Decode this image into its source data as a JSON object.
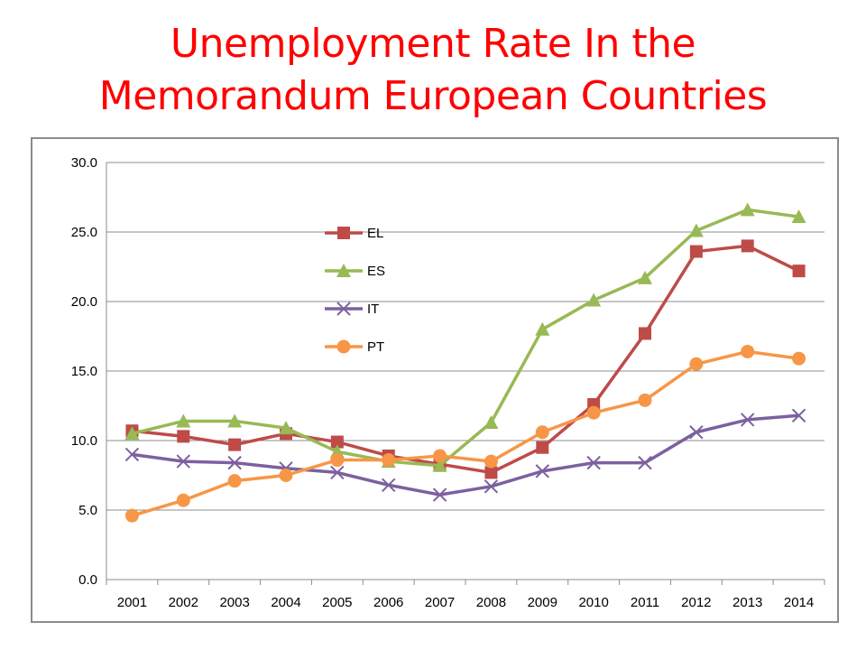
{
  "title": {
    "line1": "Unemployment Rate In the",
    "line2": "Memorandum European Countries"
  },
  "colors": {
    "title": "#ff0000",
    "EL": "#be4b48",
    "ES": "#98b954",
    "IT": "#7d60a0",
    "PT": "#f79646",
    "grid": "#8c8c8c"
  },
  "chart_data": {
    "type": "line",
    "title": "",
    "xlabel": "",
    "ylabel": "",
    "categories": [
      "2001",
      "2002",
      "2003",
      "2004",
      "2005",
      "2006",
      "2007",
      "2008",
      "2009",
      "2010",
      "2011",
      "2012",
      "2013",
      "2014"
    ],
    "ylim": [
      0,
      30
    ],
    "yticks": [
      "0.0",
      "5.0",
      "10.0",
      "15.0",
      "20.0",
      "25.0",
      "30.0"
    ],
    "grid": true,
    "legend_position": "upper-left-center",
    "series": [
      {
        "name": "EL",
        "marker": "square",
        "color": "#be4b48",
        "values": [
          10.7,
          10.3,
          9.7,
          10.5,
          9.9,
          8.9,
          8.3,
          7.7,
          9.5,
          12.6,
          17.7,
          23.6,
          24.0,
          22.2
        ]
      },
      {
        "name": "ES",
        "marker": "triangle",
        "color": "#98b954",
        "values": [
          10.5,
          11.4,
          11.4,
          10.9,
          9.2,
          8.5,
          8.2,
          11.3,
          18.0,
          20.1,
          21.7,
          25.1,
          26.6,
          26.1
        ]
      },
      {
        "name": "IT",
        "marker": "x",
        "color": "#7d60a0",
        "values": [
          9.0,
          8.5,
          8.4,
          8.0,
          7.7,
          6.8,
          6.1,
          6.7,
          7.8,
          8.4,
          8.4,
          10.6,
          11.5,
          11.8
        ]
      },
      {
        "name": "PT",
        "marker": "circle",
        "color": "#f79646",
        "values": [
          4.6,
          5.7,
          7.1,
          7.5,
          8.6,
          8.6,
          8.9,
          8.5,
          10.6,
          12.0,
          12.9,
          15.5,
          16.4,
          15.9
        ]
      }
    ]
  }
}
